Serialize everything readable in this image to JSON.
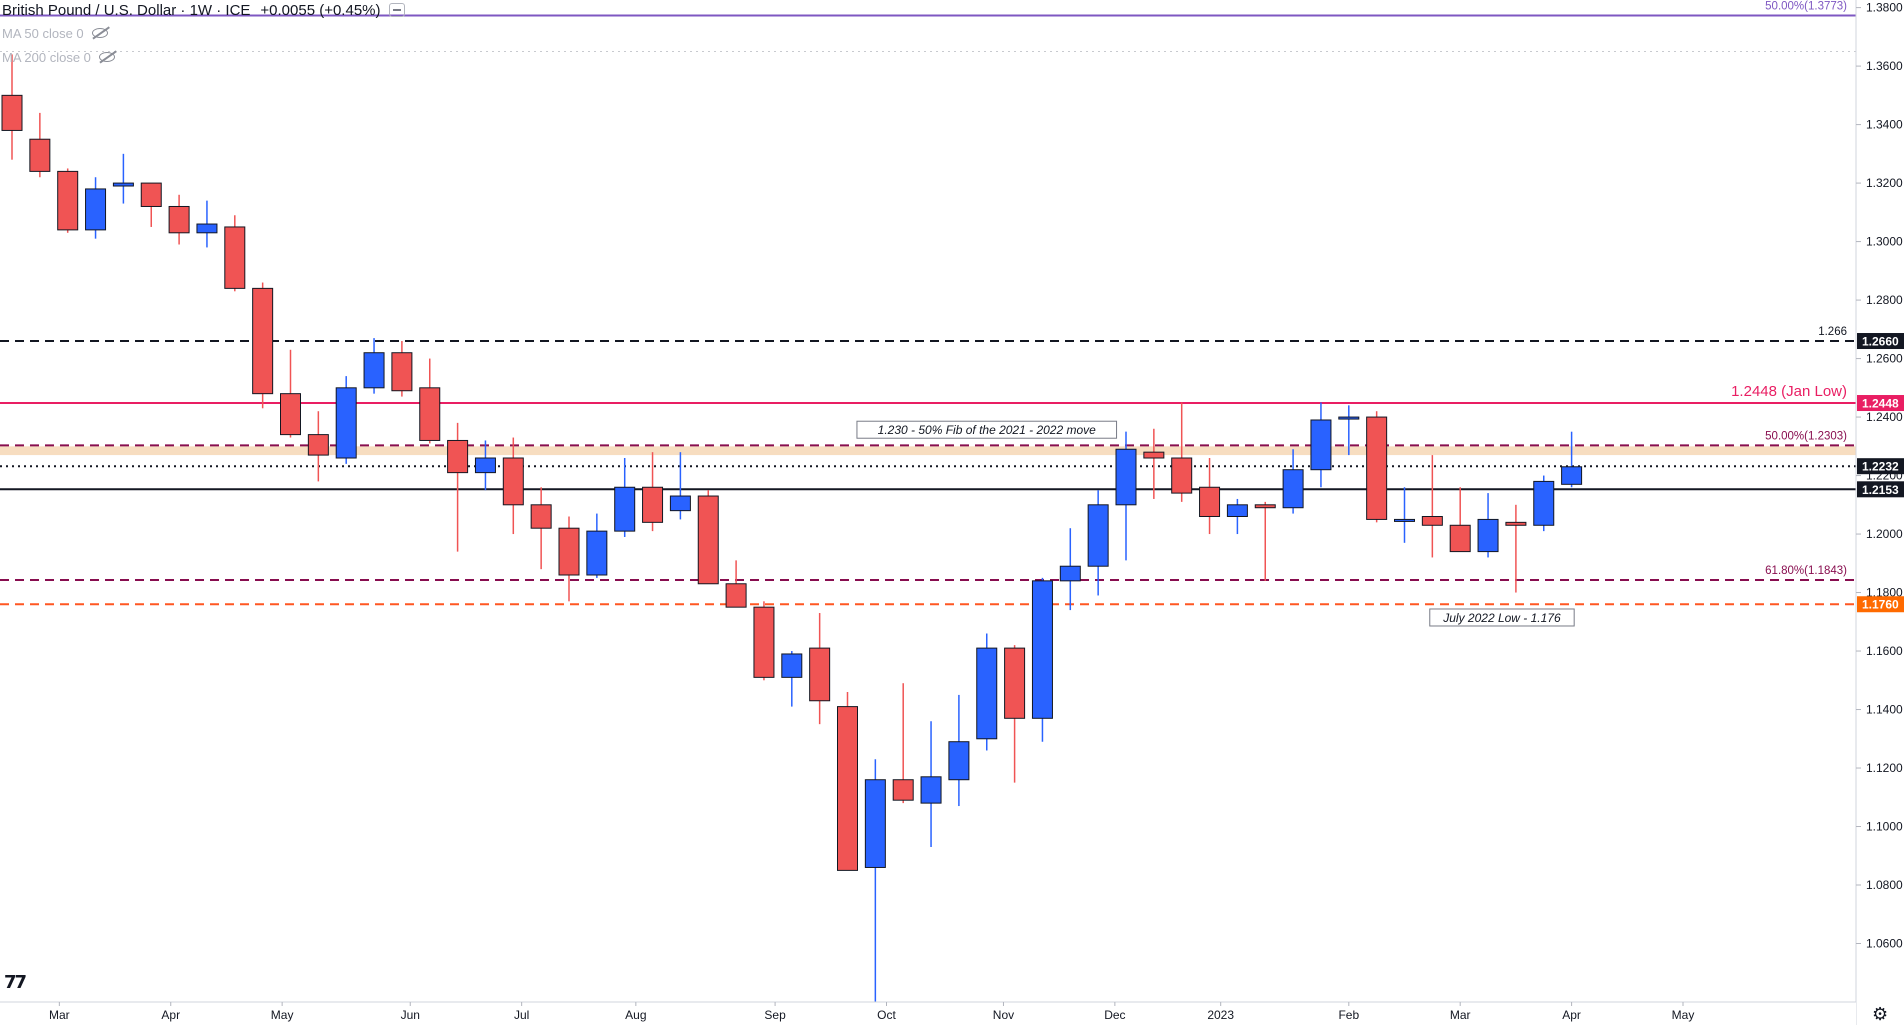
{
  "header": {
    "title": "British Pound / U.S. Dollar · 1W · ICE",
    "change": "+0.0055 (+0.45%)"
  },
  "indicators": [
    {
      "label": "MA 50 close 0"
    },
    {
      "label": "MA 200 close 0"
    }
  ],
  "chart_data": {
    "type": "candlestick",
    "y_range": [
      1.04,
      1.3826
    ],
    "y_ticks": [
      "1.3800",
      "1.3600",
      "1.3400",
      "1.3200",
      "1.3000",
      "1.2800",
      "1.2600",
      "1.2400",
      "1.2200",
      "1.2000",
      "1.1800",
      "1.1600",
      "1.1400",
      "1.1200",
      "1.1000",
      "1.0800",
      "1.0600"
    ],
    "x_labels": [
      {
        "label": "Mar",
        "index": 1.7
      },
      {
        "label": "Apr",
        "index": 5.7
      },
      {
        "label": "May",
        "index": 9.7
      },
      {
        "label": "Jun",
        "index": 14.3
      },
      {
        "label": "Jul",
        "index": 18.3
      },
      {
        "label": "Aug",
        "index": 22.4
      },
      {
        "label": "Sep",
        "index": 27.4
      },
      {
        "label": "Oct",
        "index": 31.4
      },
      {
        "label": "Nov",
        "index": 35.6
      },
      {
        "label": "Dec",
        "index": 39.6
      },
      {
        "label": "2023",
        "index": 43.4
      },
      {
        "label": "Feb",
        "index": 48.0
      },
      {
        "label": "Mar",
        "index": 52.0
      },
      {
        "label": "Apr",
        "index": 56.0
      },
      {
        "label": "May",
        "index": 60.0
      }
    ],
    "colors": {
      "up": "#2962ff",
      "down": "#f05454"
    },
    "candles": [
      {
        "o": 1.35,
        "h": 1.364,
        "l": 1.328,
        "c": 1.338
      },
      {
        "o": 1.335,
        "h": 1.344,
        "l": 1.322,
        "c": 1.324
      },
      {
        "o": 1.324,
        "h": 1.325,
        "l": 1.303,
        "c": 1.304
      },
      {
        "o": 1.304,
        "h": 1.322,
        "l": 1.301,
        "c": 1.318
      },
      {
        "o": 1.319,
        "h": 1.33,
        "l": 1.313,
        "c": 1.32
      },
      {
        "o": 1.32,
        "h": 1.32,
        "l": 1.305,
        "c": 1.312
      },
      {
        "o": 1.312,
        "h": 1.316,
        "l": 1.299,
        "c": 1.303
      },
      {
        "o": 1.303,
        "h": 1.314,
        "l": 1.298,
        "c": 1.306
      },
      {
        "o": 1.305,
        "h": 1.309,
        "l": 1.283,
        "c": 1.284
      },
      {
        "o": 1.284,
        "h": 1.286,
        "l": 1.243,
        "c": 1.248
      },
      {
        "o": 1.248,
        "h": 1.263,
        "l": 1.233,
        "c": 1.234
      },
      {
        "o": 1.234,
        "h": 1.242,
        "l": 1.218,
        "c": 1.227
      },
      {
        "o": 1.226,
        "h": 1.254,
        "l": 1.224,
        "c": 1.25
      },
      {
        "o": 1.25,
        "h": 1.267,
        "l": 1.248,
        "c": 1.262
      },
      {
        "o": 1.262,
        "h": 1.266,
        "l": 1.247,
        "c": 1.249
      },
      {
        "o": 1.25,
        "h": 1.26,
        "l": 1.231,
        "c": 1.232
      },
      {
        "o": 1.232,
        "h": 1.238,
        "l": 1.194,
        "c": 1.221
      },
      {
        "o": 1.221,
        "h": 1.232,
        "l": 1.215,
        "c": 1.226
      },
      {
        "o": 1.226,
        "h": 1.233,
        "l": 1.2,
        "c": 1.21
      },
      {
        "o": 1.21,
        "h": 1.216,
        "l": 1.188,
        "c": 1.202
      },
      {
        "o": 1.202,
        "h": 1.206,
        "l": 1.177,
        "c": 1.186
      },
      {
        "o": 1.186,
        "h": 1.207,
        "l": 1.185,
        "c": 1.201
      },
      {
        "o": 1.201,
        "h": 1.226,
        "l": 1.199,
        "c": 1.216
      },
      {
        "o": 1.216,
        "h": 1.228,
        "l": 1.201,
        "c": 1.204
      },
      {
        "o": 1.208,
        "h": 1.228,
        "l": 1.205,
        "c": 1.213
      },
      {
        "o": 1.213,
        "h": 1.215,
        "l": 1.183,
        "c": 1.183
      },
      {
        "o": 1.183,
        "h": 1.191,
        "l": 1.175,
        "c": 1.175
      },
      {
        "o": 1.175,
        "h": 1.177,
        "l": 1.15,
        "c": 1.151
      },
      {
        "o": 1.151,
        "h": 1.16,
        "l": 1.141,
        "c": 1.159
      },
      {
        "o": 1.161,
        "h": 1.173,
        "l": 1.135,
        "c": 1.143
      },
      {
        "o": 1.141,
        "h": 1.146,
        "l": 1.085,
        "c": 1.085
      },
      {
        "o": 1.086,
        "h": 1.123,
        "l": 1.035,
        "c": 1.116
      },
      {
        "o": 1.116,
        "h": 1.149,
        "l": 1.108,
        "c": 1.109
      },
      {
        "o": 1.108,
        "h": 1.136,
        "l": 1.093,
        "c": 1.117
      },
      {
        "o": 1.116,
        "h": 1.145,
        "l": 1.107,
        "c": 1.129
      },
      {
        "o": 1.13,
        "h": 1.166,
        "l": 1.126,
        "c": 1.161
      },
      {
        "o": 1.161,
        "h": 1.162,
        "l": 1.115,
        "c": 1.137
      },
      {
        "o": 1.137,
        "h": 1.185,
        "l": 1.129,
        "c": 1.184
      },
      {
        "o": 1.184,
        "h": 1.202,
        "l": 1.174,
        "c": 1.189
      },
      {
        "o": 1.189,
        "h": 1.215,
        "l": 1.179,
        "c": 1.21
      },
      {
        "o": 1.21,
        "h": 1.235,
        "l": 1.191,
        "c": 1.229
      },
      {
        "o": 1.228,
        "h": 1.236,
        "l": 1.212,
        "c": 1.226
      },
      {
        "o": 1.226,
        "h": 1.245,
        "l": 1.211,
        "c": 1.214
      },
      {
        "o": 1.216,
        "h": 1.226,
        "l": 1.2,
        "c": 1.206
      },
      {
        "o": 1.206,
        "h": 1.212,
        "l": 1.2,
        "c": 1.21
      },
      {
        "o": 1.21,
        "h": 1.211,
        "l": 1.184,
        "c": 1.209
      },
      {
        "o": 1.209,
        "h": 1.229,
        "l": 1.207,
        "c": 1.222
      },
      {
        "o": 1.222,
        "h": 1.245,
        "l": 1.216,
        "c": 1.239
      },
      {
        "o": 1.24,
        "h": 1.244,
        "l": 1.227,
        "c": 1.24
      },
      {
        "o": 1.24,
        "h": 1.242,
        "l": 1.204,
        "c": 1.205
      },
      {
        "o": 1.205,
        "h": 1.216,
        "l": 1.197,
        "c": 1.205
      },
      {
        "o": 1.206,
        "h": 1.227,
        "l": 1.192,
        "c": 1.203
      },
      {
        "o": 1.203,
        "h": 1.216,
        "l": 1.194,
        "c": 1.194
      },
      {
        "o": 1.194,
        "h": 1.214,
        "l": 1.192,
        "c": 1.205
      },
      {
        "o": 1.204,
        "h": 1.21,
        "l": 1.18,
        "c": 1.203
      },
      {
        "o": 1.203,
        "h": 1.22,
        "l": 1.201,
        "c": 1.218
      },
      {
        "o": 1.217,
        "h": 1.235,
        "l": 1.216,
        "c": 1.223
      }
    ],
    "levels": [
      {
        "value": 1.3773,
        "style": "solid",
        "color": "#7e57c2",
        "label": "50.00%(1.3773)",
        "label_color": "#7e57c2",
        "badge": ""
      },
      {
        "value": 1.365,
        "style": "dotted",
        "color": "#c8cacf",
        "label": "",
        "label_color": "",
        "badge": ""
      },
      {
        "value": 1.266,
        "style": "dashed",
        "color": "#131722",
        "label": "1.266",
        "label_color": "#131722",
        "badge": "1.2660"
      },
      {
        "value": 1.2448,
        "style": "solid",
        "color": "#e91e63",
        "label": "1.2448 (Jan Low)",
        "label_color": "#e91e63",
        "badge": "1.2448"
      },
      {
        "value": 1.2303,
        "style": "dashed",
        "color": "#880e4f",
        "label": "50.00%(1.2303)",
        "label_color": "#880e4f",
        "badge": ""
      },
      {
        "value": 1.2232,
        "style": "dotted",
        "color": "#131722",
        "label": "",
        "label_color": "",
        "badge": "1.2232"
      },
      {
        "value": 1.2153,
        "style": "solid",
        "color": "#131722",
        "label": "",
        "label_color": "",
        "badge": "1.2153"
      },
      {
        "value": 1.1843,
        "style": "dashed",
        "color": "#880e4f",
        "label": "61.80%(1.1843)",
        "label_color": "#880e4f",
        "badge": ""
      },
      {
        "value": 1.176,
        "style": "dashed",
        "color": "#ff5722",
        "label": "",
        "label_color": "",
        "badge": "1.1760"
      }
    ],
    "zone": {
      "top": 1.23,
      "bottom": 1.227,
      "color": "#f7ddc0"
    },
    "annotations": [
      {
        "text": "1.230 - 50% Fib of the 2021 - 2022 move",
        "index": 35.0,
        "value": 1.2355
      },
      {
        "text": "July 2022 Low - 1.176",
        "index": 53.5,
        "value": 1.1713
      }
    ]
  }
}
